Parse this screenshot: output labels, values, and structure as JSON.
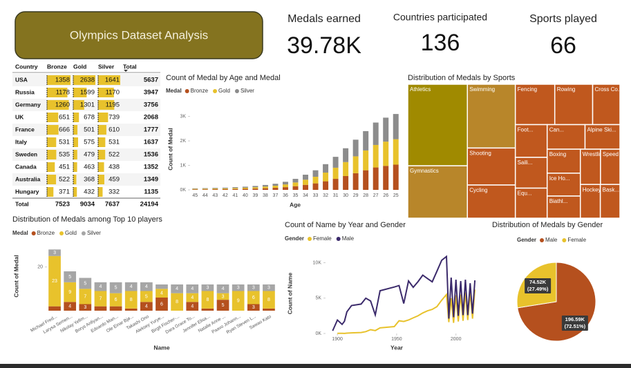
{
  "header": {
    "title": "Olympics Dataset Analysis"
  },
  "kpis": [
    {
      "label": "Medals earned",
      "value": "39.78K"
    },
    {
      "label": "Countries participated",
      "value": "136"
    },
    {
      "label": "Sports played",
      "value": "66"
    }
  ],
  "table": {
    "columns": [
      "Country",
      "Bronze",
      "Gold",
      "Silver",
      "Total"
    ],
    "rows": [
      [
        "USA",
        1358,
        2638,
        1641,
        5637
      ],
      [
        "Russia",
        1178,
        1599,
        1170,
        3947
      ],
      [
        "Germany",
        1260,
        1301,
        1195,
        3756
      ],
      [
        "UK",
        651,
        678,
        739,
        2068
      ],
      [
        "France",
        666,
        501,
        610,
        1777
      ],
      [
        "Italy",
        531,
        575,
        531,
        1637
      ],
      [
        "Sweden",
        535,
        479,
        522,
        1536
      ],
      [
        "Canada",
        451,
        463,
        438,
        1352
      ],
      [
        "Australia",
        522,
        368,
        459,
        1349
      ],
      [
        "Hungary",
        371,
        432,
        332,
        1135
      ]
    ],
    "total": [
      "Total",
      7523,
      9034,
      7637,
      24194
    ],
    "bar_color": "#e8c22c"
  },
  "chart_data": [
    {
      "type": "bar",
      "stacked": true,
      "title": "Count of Medal by Age and Medal",
      "legend_title": "Medal",
      "x_label": "Age",
      "y_label": "Count of Medal",
      "categories": [
        45,
        44,
        43,
        42,
        41,
        40,
        39,
        38,
        37,
        36,
        35,
        34,
        33,
        32,
        31,
        30,
        29,
        28,
        27,
        26,
        25
      ],
      "series": [
        {
          "name": "Bronze",
          "color": "#b5501e",
          "values": [
            20,
            23,
            27,
            30,
            36,
            43,
            53,
            66,
            83,
            110,
            150,
            205,
            265,
            350,
            450,
            565,
            680,
            800,
            915,
            980,
            1030
          ]
        },
        {
          "name": "Gold",
          "color": "#e8c22c",
          "values": [
            20,
            24,
            27,
            30,
            38,
            44,
            54,
            68,
            85,
            112,
            152,
            210,
            270,
            355,
            455,
            570,
            690,
            810,
            920,
            990,
            1040
          ]
        },
        {
          "name": "Silver",
          "color": "#8c8c8c",
          "values": [
            20,
            23,
            26,
            30,
            36,
            43,
            53,
            66,
            82,
            108,
            148,
            205,
            265,
            345,
            445,
            565,
            680,
            790,
            915,
            980,
            1030
          ]
        }
      ],
      "ylim": [
        0,
        3300
      ],
      "yticks": [
        {
          "value": 0,
          "label": "0K"
        },
        {
          "value": 1000,
          "label": "1K"
        },
        {
          "value": 2000,
          "label": "2K"
        },
        {
          "value": 3000,
          "label": "3K"
        }
      ]
    },
    {
      "type": "treemap",
      "title": "Distribution of Medals by Sports",
      "categories": [
        "Athletics",
        "Gymnastics",
        "Swimming",
        "Shooting",
        "Cycling",
        "Fencing",
        "Rowing",
        "Cross Co...",
        "Foot...",
        "Saili...",
        "Equ...",
        "Can...",
        "Alpine Ski...",
        "Boxing",
        "Ice Ho...",
        "Biathl...",
        "Wrestling",
        "Speed ...",
        "Hockey",
        "Bask..."
      ],
      "values": [
        3969,
        2550,
        2500,
        1450,
        1300,
        1300,
        1250,
        900,
        850,
        800,
        780,
        760,
        700,
        650,
        620,
        600,
        580,
        560,
        550,
        540
      ],
      "colors": [
        "#a08a00",
        "#b8862a",
        "#b8862a",
        "#c0581e",
        "#c0581e",
        "#c0581e",
        "#c0581e",
        "#c0581e",
        "#c0581e",
        "#c0581e",
        "#c0581e",
        "#c0581e",
        "#c0581e",
        "#c0581e",
        "#c0581e",
        "#c0581e",
        "#c0581e",
        "#c0581e",
        "#c0581e",
        "#c0581e"
      ]
    },
    {
      "type": "bar",
      "stacked": true,
      "title": "Distribution of Medals among Top 10 players",
      "legend_title": "Medal",
      "x_label": "Name",
      "y_label": "Count of Medal",
      "data_labels": true,
      "categories": [
        "Michael Fred...",
        "Larysa Semen...",
        "Nikolay Yefim...",
        "Borys Anfiyan...",
        "Edoardo Man...",
        "Ole Einar Bjø...",
        "Takashi Ono",
        "Aleksey Yurye...",
        "Birgit Fischer-...",
        "Dara Grace To...",
        "Jennifer Elisa...",
        "Natalie Anne ...",
        "Paavo Johann...",
        "Ryan Steven L...",
        "Sawao Kato"
      ],
      "series": [
        {
          "name": "Bronze",
          "color": "#b5501e",
          "values": [
            2,
            4,
            3,
            2,
            2,
            1,
            4,
            6,
            0,
            4,
            1,
            5,
            0,
            3,
            1
          ]
        },
        {
          "name": "Gold",
          "color": "#e8c22c",
          "values": [
            23,
            9,
            7,
            7,
            6,
            8,
            5,
            4,
            8,
            4,
            8,
            3,
            9,
            6,
            8
          ]
        },
        {
          "name": "Silver",
          "color": "#a6a6a6",
          "values": [
            3,
            5,
            5,
            4,
            5,
            4,
            4,
            2,
            4,
            4,
            3,
            4,
            3,
            3,
            3
          ]
        }
      ],
      "ylim": [
        0,
        30
      ],
      "yticks": [
        20
      ]
    },
    {
      "type": "line",
      "title": "Count of Name by Year and Gender",
      "legend_title": "Gender",
      "x_label": "Year",
      "y_label": "Count of Name",
      "x": [
        1896,
        1900,
        1904,
        1906,
        1908,
        1912,
        1920,
        1924,
        1928,
        1932,
        1936,
        1948,
        1952,
        1956,
        1960,
        1964,
        1968,
        1972,
        1976,
        1980,
        1984,
        1988,
        1992,
        1994,
        1996,
        1998,
        2000,
        2002,
        2004,
        2006,
        2008,
        2010,
        2012,
        2014,
        2016
      ],
      "series": [
        {
          "name": "Female",
          "color": "#e8c22c",
          "values": [
            null,
            33,
            16,
            11,
            47,
            87,
            134,
            261,
            537,
            410,
            788,
            980,
            1800,
            1700,
            1900,
            2200,
            2500,
            2900,
            3200,
            3400,
            3800,
            4700,
            5500,
            1600,
            5000,
            1500,
            5400,
            1700,
            5500,
            1800,
            5800,
            1900,
            5800,
            2100,
            6200
          ]
        },
        {
          "name": "Male",
          "color": "#3b2a6b",
          "values": [
            380,
            1903,
            1285,
            1722,
            3054,
            3953,
            4158,
            4989,
            4592,
            2622,
            6038,
            6570,
            6773,
            4234,
            7425,
            6523,
            7317,
            8243,
            7767,
            7293,
            8796,
            10342,
            10879,
            2100,
            7900,
            2300,
            7600,
            2500,
            7400,
            2600,
            7600,
            2600,
            7100,
            2800,
            7500
          ]
        }
      ],
      "xlim": [
        1890,
        2020
      ],
      "xticks": [
        1900,
        1950,
        2000
      ],
      "ylim": [
        0,
        12000
      ],
      "yticks": [
        {
          "value": 0,
          "label": "0K"
        },
        {
          "value": 5000,
          "label": "5K"
        },
        {
          "value": 10000,
          "label": "10K"
        }
      ]
    },
    {
      "type": "pie",
      "title": "Distribution of Medals by Gender",
      "legend_title": "Gender",
      "categories": [
        "Male",
        "Female"
      ],
      "values": [
        196590,
        74520
      ],
      "value_labels": [
        "196.59K",
        "74.52K"
      ],
      "percent_labels": [
        "(72.51%)",
        "(27.49%)"
      ],
      "colors": [
        "#b5501e",
        "#e8c22c"
      ]
    }
  ]
}
